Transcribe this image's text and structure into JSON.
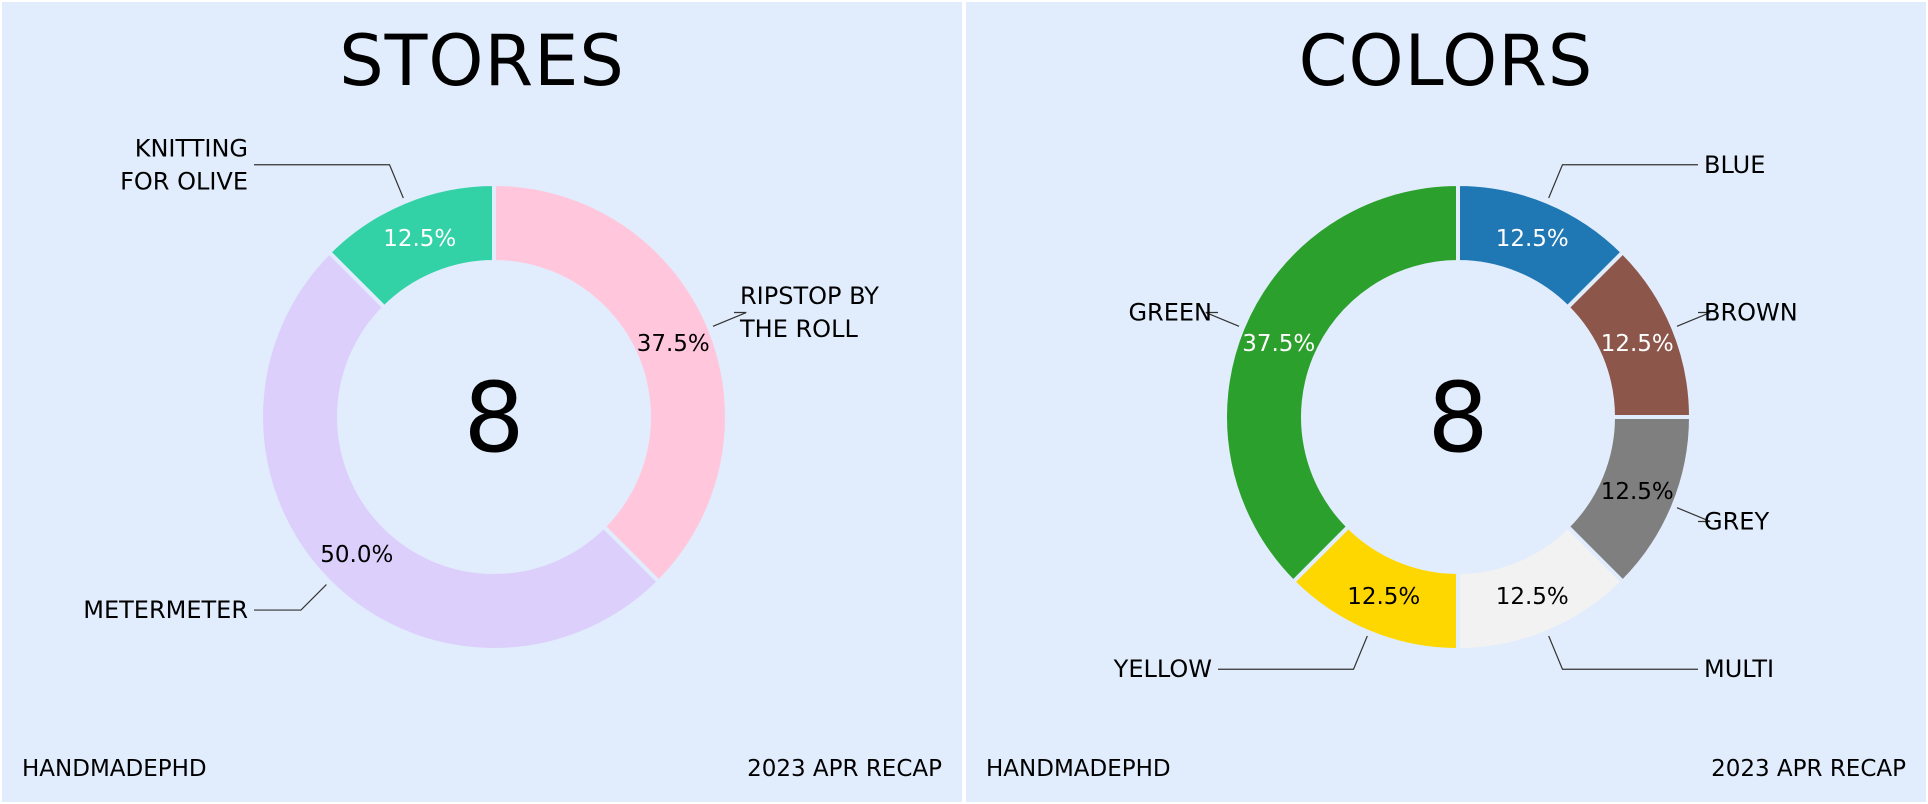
{
  "chart_data": [
    {
      "type": "pie",
      "title": "STORES",
      "center_value": "8",
      "footer_left": "HANDMADEPHD",
      "footer_right": "2023 APR RECAP",
      "slices": [
        {
          "label": [
            "RIPSTOP BY",
            "THE ROLL"
          ],
          "value": 37.5,
          "display": "37.5%",
          "color": "#ffc6dc",
          "text_color": "#000000"
        },
        {
          "label": [
            "METERMETER"
          ],
          "value": 50.0,
          "display": "50.0%",
          "color": "#dccffb",
          "text_color": "#000000"
        },
        {
          "label": [
            "KNITTING",
            "FOR OLIVE"
          ],
          "value": 12.5,
          "display": "12.5%",
          "color": "#33d2a6",
          "text_color": "#ffffff"
        }
      ]
    },
    {
      "type": "pie",
      "title": "COLORS",
      "center_value": "8",
      "footer_left": "HANDMADEPHD",
      "footer_right": "2023 APR RECAP",
      "slices": [
        {
          "label": [
            "BLUE"
          ],
          "value": 12.5,
          "display": "12.5%",
          "color": "#1f77b4",
          "text_color": "#ffffff"
        },
        {
          "label": [
            "BROWN"
          ],
          "value": 12.5,
          "display": "12.5%",
          "color": "#8c564b",
          "text_color": "#ffffff"
        },
        {
          "label": [
            "GREY"
          ],
          "value": 12.5,
          "display": "12.5%",
          "color": "#7f7f7f",
          "text_color": "#000000"
        },
        {
          "label": [
            "MULTI"
          ],
          "value": 12.5,
          "display": "12.5%",
          "color": "#f2f2f2",
          "text_color": "#000000"
        },
        {
          "label": [
            "YELLOW"
          ],
          "value": 12.5,
          "display": "12.5%",
          "color": "#ffd700",
          "text_color": "#000000"
        },
        {
          "label": [
            "GREEN"
          ],
          "value": 37.5,
          "display": "37.5%",
          "color": "#2ca02c",
          "text_color": "#ffffff"
        }
      ]
    }
  ]
}
